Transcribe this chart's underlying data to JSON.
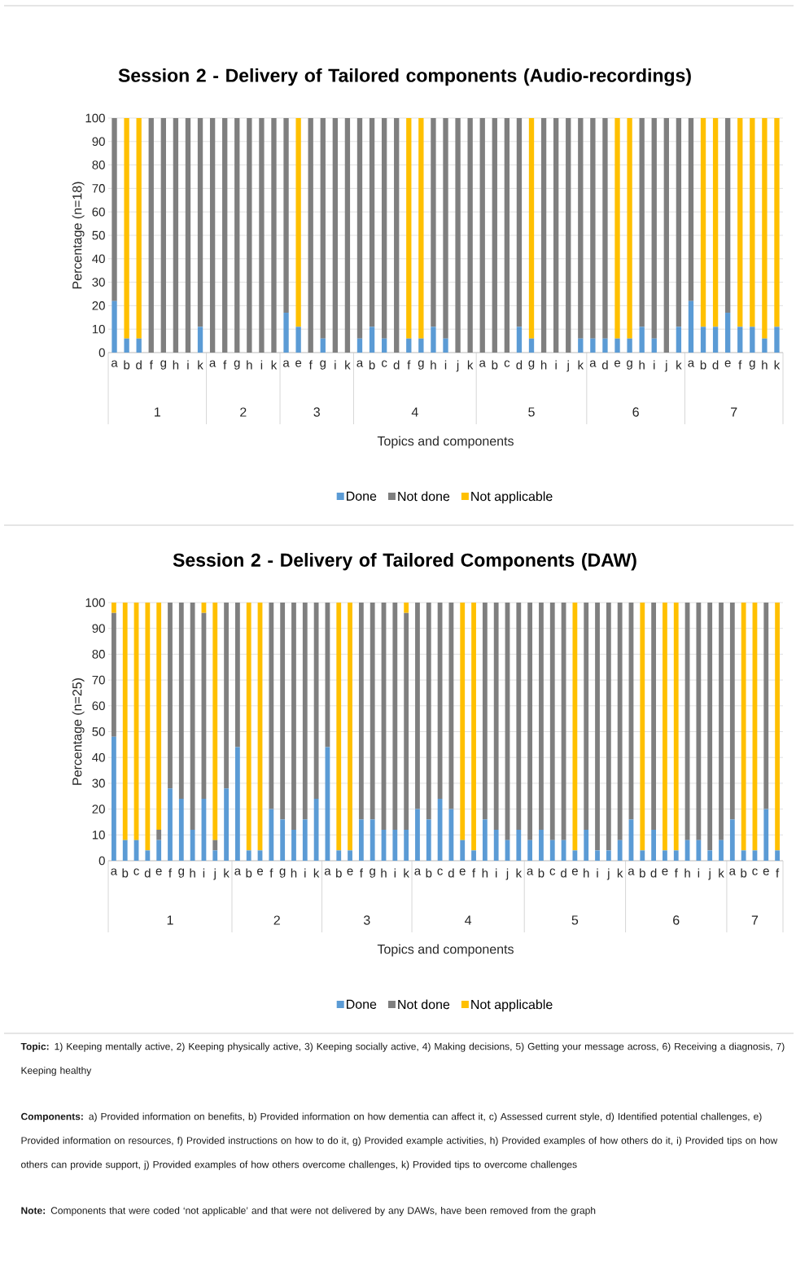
{
  "chart_data": [
    {
      "type": "bar",
      "stacked": true,
      "title": "Session 2 - Delivery of Tailored components (Audio-recordings)",
      "xlabel": "Topics and components",
      "ylabel": "Percentage (n=18)",
      "categories": [
        "a",
        "b",
        "d",
        "f",
        "g",
        "h",
        "i",
        "k",
        "a",
        "f",
        "g",
        "h",
        "i",
        "k",
        "a",
        "e",
        "f",
        "g",
        "i",
        "k",
        "a",
        "b",
        "c",
        "d",
        "f",
        "g",
        "h",
        "i",
        "j",
        "k",
        "a",
        "b",
        "c",
        "d",
        "g",
        "h",
        "i",
        "j",
        "k",
        "a",
        "d",
        "e",
        "g",
        "h",
        "i",
        "j",
        "k",
        "a",
        "b",
        "d",
        "e",
        "f",
        "g",
        "h",
        "k"
      ],
      "series": [
        {
          "name": "Done",
          "color": "#5b9bd5",
          "values": [
            22,
            6,
            6,
            0,
            0,
            0,
            0,
            11,
            0,
            0,
            0,
            0,
            0,
            0,
            17,
            11,
            0,
            6,
            0,
            0,
            6,
            11,
            6,
            0,
            6,
            6,
            11,
            6,
            0,
            0,
            0,
            0,
            0,
            11,
            6,
            0,
            0,
            0,
            6,
            6,
            6,
            6,
            6,
            11,
            6,
            0,
            11,
            22,
            11,
            11,
            17,
            11,
            11,
            6,
            11
          ]
        },
        {
          "name": "Not done",
          "color": "#7f7f7f",
          "values": [
            78,
            0,
            0,
            100,
            100,
            100,
            100,
            89,
            100,
            100,
            100,
            100,
            100,
            100,
            83,
            0,
            100,
            94,
            100,
            100,
            94,
            89,
            94,
            100,
            0,
            0,
            89,
            94,
            100,
            100,
            100,
            100,
            100,
            89,
            0,
            100,
            100,
            100,
            94,
            94,
            94,
            0,
            0,
            89,
            94,
            100,
            89,
            78,
            0,
            0,
            83,
            0,
            0,
            0,
            0
          ]
        },
        {
          "name": "Not applicable",
          "color": "#ffc000",
          "values": [
            0,
            94,
            94,
            0,
            0,
            0,
            0,
            0,
            0,
            0,
            0,
            0,
            0,
            0,
            0,
            89,
            0,
            0,
            0,
            0,
            0,
            0,
            0,
            0,
            94,
            94,
            0,
            0,
            0,
            0,
            0,
            0,
            0,
            0,
            94,
            0,
            0,
            0,
            0,
            0,
            0,
            94,
            94,
            0,
            0,
            0,
            0,
            0,
            89,
            89,
            0,
            89,
            89,
            94,
            89
          ]
        }
      ],
      "ylim": [
        0,
        100
      ],
      "yticks": [
        0,
        10,
        20,
        30,
        40,
        50,
        60,
        70,
        80,
        90,
        100
      ],
      "grid": "y",
      "legend": "bottom",
      "annotations": [
        "1",
        "2",
        "3",
        "4",
        "5",
        "6",
        "7"
      ]
    },
    {
      "type": "bar",
      "stacked": true,
      "title": "Session 2 - Delivery of Tailored Components (DAW)",
      "xlabel": "Topics and components",
      "ylabel": "Percentage (n=25)",
      "categories": [
        "a",
        "b",
        "c",
        "d",
        "e",
        "f",
        "g",
        "h",
        "i",
        "j",
        "k",
        "a",
        "b",
        "e",
        "f",
        "g",
        "h",
        "i",
        "k",
        "a",
        "b",
        "e",
        "f",
        "g",
        "h",
        "i",
        "k",
        "a",
        "b",
        "c",
        "d",
        "e",
        "f",
        "h",
        "i",
        "j",
        "k",
        "a",
        "b",
        "c",
        "d",
        "e",
        "h",
        "i",
        "j",
        "k",
        "a",
        "b",
        "d",
        "e",
        "f",
        "h",
        "i",
        "j",
        "k",
        "a",
        "b",
        "c",
        "e",
        "f"
      ],
      "series": [
        {
          "name": "Done",
          "color": "#5b9bd5",
          "values": [
            48,
            8,
            8,
            4,
            8,
            28,
            24,
            12,
            24,
            4,
            28,
            44,
            4,
            4,
            20,
            16,
            12,
            16,
            24,
            44,
            4,
            4,
            16,
            16,
            12,
            12,
            12,
            20,
            16,
            24,
            20,
            8,
            4,
            16,
            12,
            8,
            12,
            8,
            12,
            8,
            8,
            4,
            12,
            4,
            4,
            8,
            16,
            4,
            12,
            4,
            4,
            8,
            8,
            4,
            8,
            16,
            4,
            4,
            20,
            4
          ]
        },
        {
          "name": "Not done",
          "color": "#7f7f7f",
          "values": [
            48,
            0,
            0,
            0,
            4,
            72,
            76,
            88,
            72,
            4,
            72,
            56,
            0,
            0,
            80,
            84,
            88,
            84,
            76,
            56,
            0,
            0,
            84,
            84,
            88,
            88,
            84,
            80,
            84,
            76,
            80,
            0,
            0,
            84,
            88,
            92,
            88,
            92,
            88,
            92,
            92,
            0,
            88,
            96,
            96,
            92,
            84,
            0,
            88,
            0,
            0,
            92,
            92,
            96,
            92,
            84,
            0,
            0,
            80,
            0
          ]
        },
        {
          "name": "Not applicable",
          "color": "#ffc000",
          "values": [
            4,
            92,
            92,
            96,
            88,
            0,
            0,
            0,
            4,
            92,
            0,
            0,
            96,
            96,
            0,
            0,
            0,
            0,
            0,
            0,
            96,
            96,
            0,
            0,
            0,
            0,
            4,
            0,
            0,
            0,
            0,
            92,
            96,
            0,
            0,
            0,
            0,
            0,
            0,
            0,
            0,
            96,
            0,
            0,
            0,
            0,
            0,
            96,
            0,
            96,
            96,
            0,
            0,
            0,
            0,
            0,
            96,
            96,
            0,
            96
          ]
        }
      ],
      "ylim": [
        0,
        100
      ],
      "yticks": [
        0,
        10,
        20,
        30,
        40,
        50,
        60,
        70,
        80,
        90,
        100
      ],
      "grid": "y",
      "legend": "bottom",
      "annotations": [
        "1",
        "2",
        "3",
        "4",
        "5",
        "6",
        "7",
        "**Topic:** 1) Keeping mentally active, 2) Keeping physically active, 3) Keeping socially active, 4) Making decisions, 5) Getting your message across, 6) Receiving a diagnosis, 7) Keeping healthy",
        "**Components:** a) Provided information on benefits, b) Provided information on how dementia can affect it, c) Assessed current style, d) Identified potential challenges, e) Provided information on resources, f) Provided instructions on how to do it, g) Provided example activities, h) Provided examples of how others do it, i) Provided tips on how others can provide support, j) Provided examples of how others overcome challenges, k) Provided tips to overcome challenges",
        "**Note:** Components that were coded ‘not applicable’ and that were not delivered by any DAWs, have been removed from the graph"
      ]
    }
  ]
}
